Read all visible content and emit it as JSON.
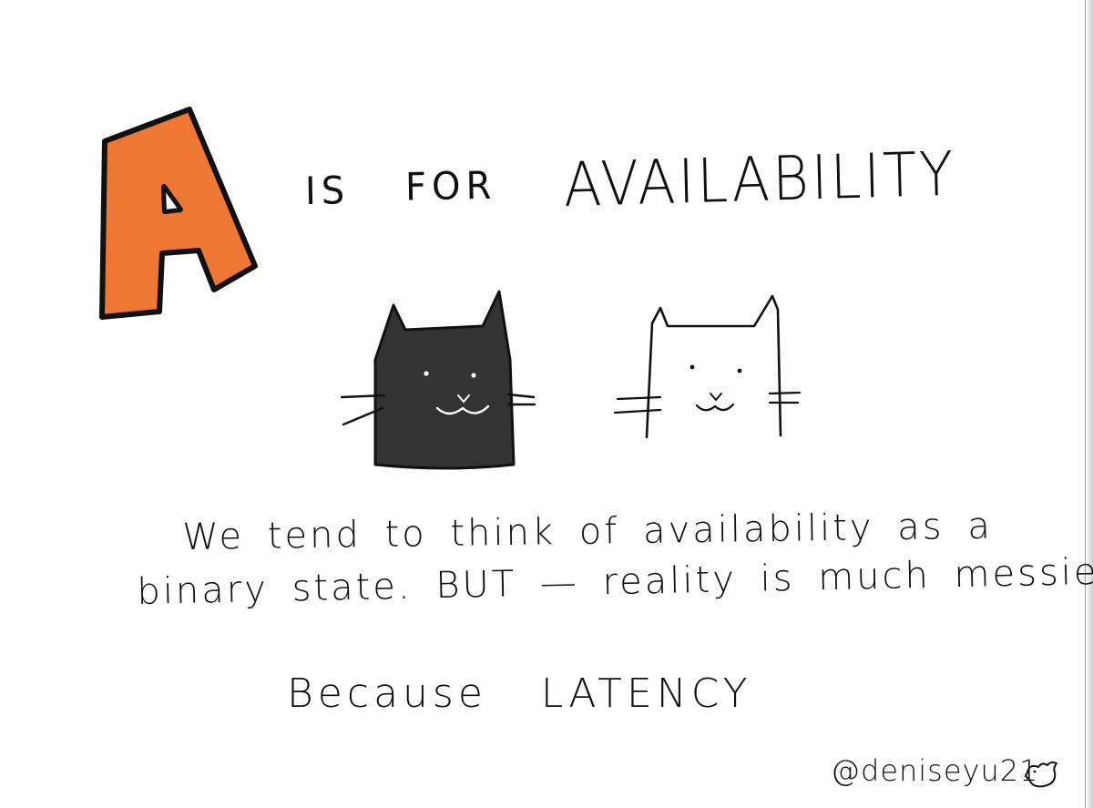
{
  "letter": "A",
  "title": {
    "is": "IS",
    "for": "FOR",
    "word": "AVAILABILITY"
  },
  "body": {
    "line1": "We tend to think of availability as a",
    "line2": "binary state. BUT — reality is much messier!"
  },
  "closing": "Because LATENCY",
  "credit": "@deniseyu21",
  "icons": {
    "letter": "orange-letter-a-icon",
    "black_cat": "black-cat-icon",
    "white_cat": "white-cat-icon",
    "bird": "bird-icon"
  },
  "colors": {
    "letter_fill": "#EE7733",
    "ink": "#111111",
    "black_cat": "#333333",
    "background": "#FFFFFF"
  }
}
